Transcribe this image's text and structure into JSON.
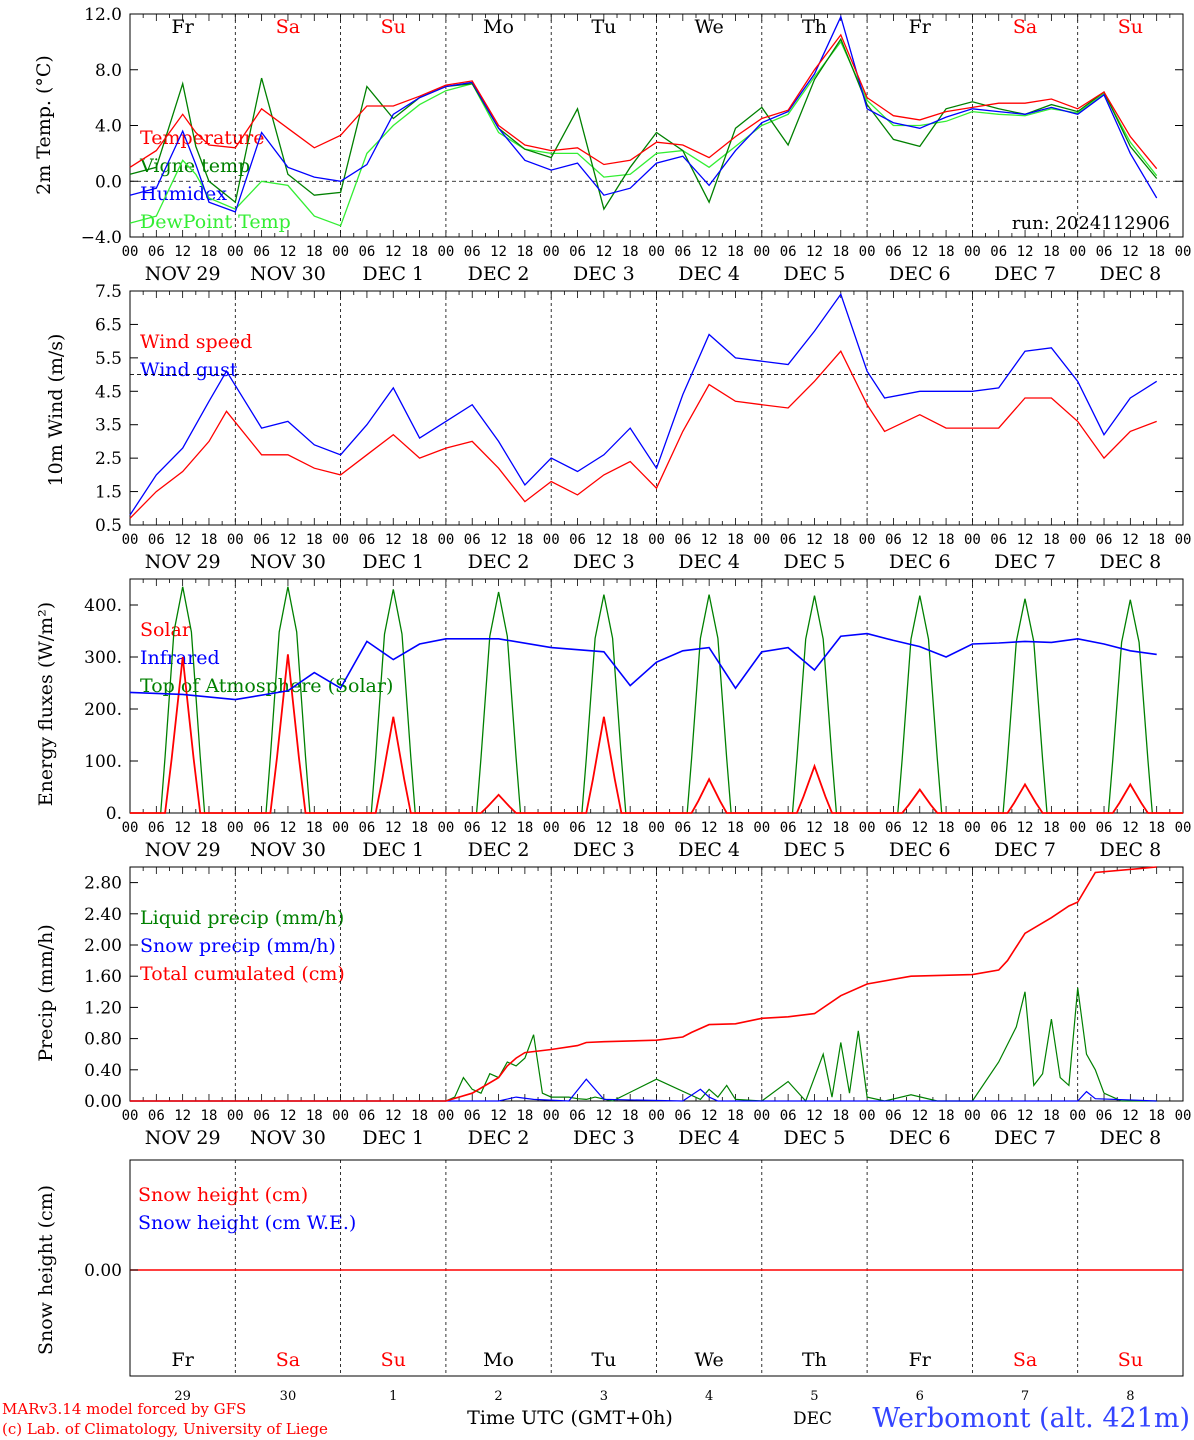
{
  "colors": {
    "red": "#ff0000",
    "darkgreen": "#008000",
    "blue": "#0000ff",
    "lightgreen": "#33ee33",
    "frame": "#000000",
    "footer_red": "#ff0000",
    "footer_blue": "#3344ff"
  },
  "days": [
    {
      "abbr": "Fr",
      "date": "NOV 29",
      "daynum": "29",
      "weekend": false
    },
    {
      "abbr": "Sa",
      "date": "NOV 30",
      "daynum": "30",
      "weekend": true
    },
    {
      "abbr": "Su",
      "date": "DEC  1",
      "daynum": "1",
      "weekend": true
    },
    {
      "abbr": "Mo",
      "date": "DEC  2",
      "daynum": "2",
      "weekend": false
    },
    {
      "abbr": "Tu",
      "date": "DEC  3",
      "daynum": "3",
      "weekend": false
    },
    {
      "abbr": "We",
      "date": "DEC  4",
      "daynum": "4",
      "weekend": false
    },
    {
      "abbr": "Th",
      "date": "DEC  5",
      "daynum": "5",
      "weekend": false
    },
    {
      "abbr": "Fr",
      "date": "DEC  6",
      "daynum": "6",
      "weekend": false
    },
    {
      "abbr": "Sa",
      "date": "DEC  7",
      "daynum": "7",
      "weekend": true
    },
    {
      "abbr": "Su",
      "date": "DEC  8",
      "daynum": "8",
      "weekend": true
    }
  ],
  "hour_ticks": [
    "00",
    "06",
    "12",
    "18"
  ],
  "hour_end": "00",
  "run_label": "run: 2024112906",
  "footer": {
    "model_line1": "MARv3.14 model forced by GFS",
    "model_line2": "(c) Lab. of Climatology, University of Liege",
    "xlabel": "Time UTC (GMT+0h)",
    "month": "DEC",
    "station": "Werbomont (alt. 421m)"
  },
  "chart_data": [
    {
      "type": "line",
      "ylabel": "2m Temp. (°C)",
      "ylim": [
        -4,
        12
      ],
      "yticks": [
        "12.0",
        "8.0",
        "4.0",
        "0.0",
        "−4.0"
      ],
      "ytick_values": [
        12,
        8,
        4,
        0,
        -4
      ],
      "ref_line": 0,
      "x_unit": "hours from 2024-11-29 00 UTC",
      "series": [
        {
          "name": "Temperature",
          "color": "red",
          "x": [
            0,
            6,
            12,
            15,
            18,
            24,
            30,
            36,
            42,
            48,
            54,
            60,
            66,
            72,
            78,
            84,
            90,
            96,
            102,
            108,
            114,
            120,
            126,
            132,
            138,
            144,
            150,
            156,
            162,
            168,
            174,
            180,
            186,
            192,
            198,
            204,
            210,
            216,
            222,
            228,
            234
          ],
          "values": [
            1.0,
            2.2,
            4.8,
            3.5,
            2.6,
            2.4,
            5.2,
            3.8,
            2.4,
            3.3,
            5.4,
            5.4,
            6.1,
            6.9,
            7.2,
            4.0,
            2.6,
            2.2,
            2.4,
            1.2,
            1.5,
            2.8,
            2.6,
            1.7,
            3.2,
            4.5,
            5.1,
            8.0,
            10.5,
            6.0,
            4.7,
            4.4,
            5.0,
            5.3,
            5.6,
            5.6,
            5.9,
            5.2,
            6.4,
            3.2,
            0.9
          ]
        },
        {
          "name": "Vigne temp",
          "color": "darkgreen",
          "x": [
            0,
            6,
            12,
            15,
            18,
            24,
            30,
            36,
            42,
            48,
            54,
            60,
            66,
            72,
            78,
            84,
            90,
            96,
            102,
            108,
            114,
            120,
            126,
            132,
            138,
            144,
            150,
            156,
            162,
            168,
            174,
            180,
            186,
            192,
            198,
            204,
            210,
            216,
            222,
            228,
            234
          ],
          "values": [
            0.5,
            1.0,
            7.0,
            2.5,
            0.0,
            -1.5,
            7.4,
            0.5,
            -1.0,
            -0.8,
            6.8,
            4.5,
            6.0,
            6.8,
            7.0,
            3.8,
            2.3,
            1.7,
            5.2,
            -2.0,
            1.0,
            3.5,
            2.2,
            -1.5,
            3.8,
            5.3,
            2.6,
            7.3,
            10.2,
            5.5,
            3.0,
            2.5,
            5.2,
            5.7,
            5.2,
            4.8,
            5.5,
            5.0,
            6.4,
            2.5,
            0.2
          ]
        },
        {
          "name": "Humidex",
          "color": "blue",
          "x": [
            0,
            6,
            12,
            15,
            18,
            24,
            30,
            36,
            42,
            48,
            54,
            60,
            66,
            72,
            78,
            84,
            90,
            96,
            102,
            108,
            114,
            120,
            126,
            132,
            138,
            144,
            150,
            156,
            162,
            168,
            174,
            180,
            186,
            192,
            198,
            204,
            210,
            216,
            222,
            228,
            234
          ],
          "values": [
            -1.0,
            -0.5,
            3.6,
            1.2,
            -1.5,
            -2.2,
            3.5,
            1.0,
            0.3,
            0.0,
            1.2,
            4.8,
            6.0,
            6.8,
            7.1,
            3.8,
            1.5,
            0.8,
            1.3,
            -1.0,
            -0.5,
            1.3,
            1.8,
            -0.3,
            2.2,
            4.2,
            5.0,
            7.7,
            11.8,
            5.2,
            4.2,
            3.8,
            4.6,
            5.2,
            5.0,
            4.8,
            5.3,
            4.8,
            6.2,
            2.0,
            -1.2
          ]
        },
        {
          "name": "DewPoint Temp",
          "color": "lightgreen",
          "x": [
            0,
            6,
            12,
            15,
            18,
            24,
            30,
            36,
            42,
            48,
            54,
            60,
            66,
            72,
            78,
            84,
            90,
            96,
            102,
            108,
            114,
            120,
            126,
            132,
            138,
            144,
            150,
            156,
            162,
            168,
            174,
            180,
            186,
            192,
            198,
            204,
            210,
            216,
            222,
            228,
            234
          ],
          "values": [
            -3.0,
            -2.5,
            1.5,
            0.5,
            -1.2,
            -2.0,
            0.0,
            -0.3,
            -2.5,
            -3.2,
            2.0,
            4.0,
            5.5,
            6.5,
            7.0,
            3.5,
            2.3,
            2.0,
            2.0,
            0.3,
            0.5,
            2.0,
            2.2,
            1.0,
            2.5,
            4.0,
            4.8,
            7.5,
            10.0,
            5.8,
            4.0,
            4.0,
            4.3,
            5.0,
            4.8,
            4.7,
            5.2,
            4.9,
            6.3,
            2.8,
            0.4
          ]
        }
      ]
    },
    {
      "type": "line",
      "ylabel": "10m Wind (m/s)",
      "ylim": [
        0.5,
        7.5
      ],
      "yticks": [
        "7.5",
        "6.5",
        "5.5",
        "4.5",
        "3.5",
        "2.5",
        "1.5",
        "0.5"
      ],
      "ytick_values": [
        7.5,
        6.5,
        5.5,
        4.5,
        3.5,
        2.5,
        1.5,
        0.5
      ],
      "ref_line": 5.0,
      "x_unit": "hours from 2024-11-29 00 UTC",
      "series": [
        {
          "name": "Wind speed",
          "color": "red",
          "x": [
            0,
            6,
            12,
            18,
            22,
            30,
            36,
            42,
            48,
            54,
            60,
            66,
            72,
            78,
            84,
            90,
            96,
            102,
            108,
            114,
            120,
            126,
            132,
            138,
            144,
            150,
            156,
            162,
            168,
            172,
            180,
            186,
            192,
            198,
            204,
            210,
            216,
            222,
            228,
            234
          ],
          "values": [
            0.7,
            1.5,
            2.1,
            3.0,
            3.9,
            2.6,
            2.6,
            2.2,
            2.0,
            2.6,
            3.2,
            2.5,
            2.8,
            3.0,
            2.2,
            1.2,
            1.8,
            1.4,
            2.0,
            2.4,
            1.6,
            3.3,
            4.7,
            4.2,
            4.1,
            4.0,
            4.8,
            5.7,
            4.1,
            3.3,
            3.8,
            3.4,
            3.4,
            3.4,
            4.3,
            4.3,
            3.6,
            2.5,
            3.3,
            3.6
          ]
        },
        {
          "name": "Wind gust",
          "color": "blue",
          "x": [
            0,
            6,
            12,
            18,
            22,
            30,
            36,
            42,
            48,
            54,
            60,
            66,
            72,
            78,
            84,
            90,
            96,
            102,
            108,
            114,
            120,
            126,
            132,
            138,
            144,
            150,
            156,
            162,
            168,
            172,
            180,
            186,
            192,
            198,
            204,
            210,
            216,
            222,
            228,
            234
          ],
          "values": [
            0.8,
            2.0,
            2.8,
            4.2,
            5.1,
            3.4,
            3.6,
            2.9,
            2.6,
            3.5,
            4.6,
            3.1,
            3.6,
            4.1,
            3.0,
            1.7,
            2.5,
            2.1,
            2.6,
            3.4,
            2.2,
            4.4,
            6.2,
            5.5,
            5.4,
            5.3,
            6.3,
            7.4,
            5.1,
            4.3,
            4.5,
            4.5,
            4.5,
            4.6,
            5.7,
            5.8,
            4.8,
            3.2,
            4.3,
            4.8
          ]
        }
      ]
    },
    {
      "type": "line",
      "ylabel": "Energy fluxes (W/m²)",
      "ylim": [
        0,
        450
      ],
      "yticks": [
        "400.",
        "300.",
        "200.",
        "100.",
        "0."
      ],
      "ytick_values": [
        400,
        300,
        200,
        100,
        0
      ],
      "x_unit": "hours from 2024-11-29 00 UTC",
      "solar_peaks": [
        300,
        305,
        185,
        35,
        185,
        65,
        90,
        45,
        55,
        55
      ],
      "toa_peaks": [
        435,
        435,
        430,
        425,
        420,
        420,
        418,
        418,
        412,
        410
      ],
      "series": [
        {
          "name": "Solar",
          "color": "red"
        },
        {
          "name": "Infrared",
          "color": "blue",
          "x": [
            0,
            12,
            24,
            36,
            42,
            48,
            54,
            60,
            66,
            72,
            84,
            96,
            108,
            114,
            120,
            126,
            132,
            138,
            144,
            150,
            156,
            162,
            168,
            174,
            180,
            186,
            192,
            198,
            204,
            210,
            216,
            222,
            228,
            234
          ],
          "values": [
            232,
            228,
            218,
            235,
            270,
            240,
            330,
            295,
            325,
            335,
            335,
            318,
            310,
            245,
            290,
            312,
            318,
            240,
            310,
            318,
            275,
            340,
            345,
            332,
            320,
            300,
            325,
            327,
            330,
            328,
            335,
            325,
            312,
            305
          ]
        },
        {
          "name": "Top of Atmosphere (Solar)",
          "color": "darkgreen"
        }
      ]
    },
    {
      "type": "line",
      "ylabel": "Precip (mm/h)",
      "ylim": [
        0,
        3.0
      ],
      "yticks": [
        "2.80",
        "2.40",
        "2.00",
        "1.60",
        "1.20",
        "0.80",
        "0.40",
        "0.00"
      ],
      "ytick_values": [
        2.8,
        2.4,
        2.0,
        1.6,
        1.2,
        0.8,
        0.4,
        0.0
      ],
      "x_unit": "hours from 2024-11-29 00 UTC",
      "series": [
        {
          "name": "Liquid precip (mm/h)",
          "color": "darkgreen",
          "x": [
            0,
            72,
            74,
            76,
            78,
            80,
            82,
            84,
            86,
            88,
            90,
            92,
            94,
            96,
            100,
            102,
            104,
            106,
            110,
            120,
            130,
            132,
            134,
            136,
            138,
            144,
            150,
            154,
            158,
            160,
            162,
            164,
            166,
            168,
            172,
            178,
            184,
            192,
            198,
            202,
            204,
            206,
            208,
            210,
            212,
            214,
            216,
            218,
            220,
            222,
            226,
            230,
            234
          ],
          "values": [
            0,
            0,
            0.05,
            0.3,
            0.15,
            0.1,
            0.35,
            0.3,
            0.5,
            0.45,
            0.55,
            0.85,
            0.1,
            0.05,
            0.05,
            0.03,
            0.02,
            0.05,
            0.0,
            0.28,
            0.02,
            0.15,
            0.05,
            0.2,
            0.02,
            0.0,
            0.25,
            0.0,
            0.6,
            0.05,
            0.75,
            0.1,
            0.9,
            0.05,
            0.0,
            0.08,
            0.0,
            0.0,
            0.5,
            0.95,
            1.4,
            0.2,
            0.35,
            1.05,
            0.3,
            0.2,
            1.45,
            0.6,
            0.4,
            0.1,
            0.0,
            0.0,
            0.0
          ]
        },
        {
          "name": "Snow precip (mm/h)",
          "color": "blue",
          "x": [
            0,
            84,
            88,
            92,
            100,
            104,
            108,
            126,
            130,
            132,
            134,
            200,
            216,
            218,
            220,
            234
          ],
          "values": [
            0,
            0,
            0.05,
            0.02,
            0.0,
            0.28,
            0.02,
            0.0,
            0.15,
            0.05,
            0.0,
            0.0,
            0.0,
            0.12,
            0.03,
            0.0
          ]
        },
        {
          "name": "Total cumulated (cm)",
          "color": "red",
          "x": [
            0,
            72,
            78,
            84,
            86,
            88,
            90,
            96,
            102,
            104,
            108,
            120,
            126,
            128,
            132,
            138,
            144,
            150,
            156,
            162,
            168,
            178,
            192,
            198,
            200,
            204,
            210,
            214,
            216,
            220,
            234
          ],
          "values": [
            0,
            0,
            0.1,
            0.3,
            0.45,
            0.55,
            0.62,
            0.66,
            0.71,
            0.75,
            0.76,
            0.78,
            0.82,
            0.88,
            0.98,
            0.99,
            1.06,
            1.08,
            1.12,
            1.35,
            1.5,
            1.6,
            1.62,
            1.68,
            1.8,
            2.15,
            2.35,
            2.5,
            2.55,
            2.93,
            3.0
          ]
        }
      ]
    },
    {
      "type": "line",
      "ylabel": "Snow height (cm)",
      "yticks": [
        "0.00"
      ],
      "series": [
        {
          "name": "Snow height (cm)",
          "color": "red",
          "values": [
            0,
            0
          ]
        },
        {
          "name": "Snow height (cm W.E.)",
          "color": "blue",
          "values": [
            0,
            0
          ]
        }
      ]
    }
  ]
}
